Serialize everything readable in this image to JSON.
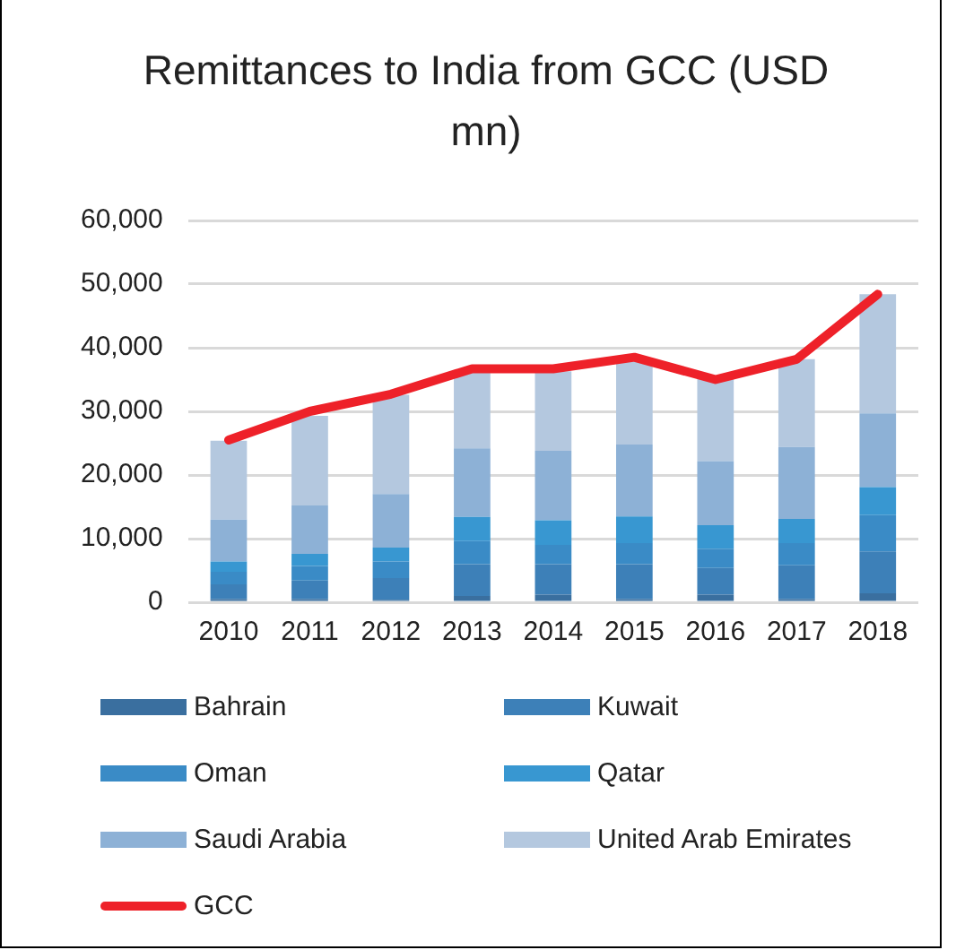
{
  "chart_data": {
    "type": "bar",
    "title": "Remittances to India from GCC (USD mn)",
    "stacked": true,
    "categories": [
      "2010",
      "2011",
      "2012",
      "2013",
      "2014",
      "2015",
      "2016",
      "2017",
      "2018"
    ],
    "series": [
      {
        "name": "Bahrain",
        "color": "#3a6f9f",
        "values": [
          500,
          500,
          400,
          1000,
          1200,
          500,
          1200,
          500,
          1400
        ]
      },
      {
        "name": "Kuwait",
        "color": "#3d80b8",
        "values": [
          2300,
          2900,
          3400,
          5000,
          4800,
          5500,
          4200,
          5300,
          6600
        ]
      },
      {
        "name": "Oman",
        "color": "#3a8bc6",
        "values": [
          2000,
          2300,
          2600,
          3600,
          3000,
          3300,
          3000,
          3500,
          5700
        ]
      },
      {
        "name": "Qatar",
        "color": "#3897d1",
        "values": [
          1600,
          1900,
          2200,
          3800,
          3900,
          4200,
          3700,
          3800,
          4400
        ]
      },
      {
        "name": "Saudi Arabia",
        "color": "#8db1d6",
        "values": [
          6600,
          7600,
          8400,
          10800,
          10900,
          11300,
          10100,
          11300,
          11600
        ]
      },
      {
        "name": "United Arab Emirates",
        "color": "#b4c8df",
        "values": [
          12400,
          14100,
          15600,
          12300,
          12500,
          13500,
          13000,
          13800,
          18700
        ]
      },
      {
        "name": "GCC",
        "type": "line",
        "color": "#ee2129",
        "values": [
          25500,
          30000,
          32700,
          36700,
          36700,
          38500,
          35000,
          38200,
          48400
        ]
      }
    ],
    "ylim": [
      0,
      60000
    ],
    "yticks": [
      0,
      {
        "value": 10000,
        "label": "10,000"
      },
      {
        "value": 20000,
        "label": "20,000"
      },
      {
        "value": 30000,
        "label": "30,000"
      },
      {
        "value": 40000,
        "label": "40,000"
      },
      {
        "value": 50000,
        "label": "50,000"
      },
      {
        "value": 60000,
        "label": "60,000"
      }
    ],
    "grid": "y",
    "legend": "bottom",
    "marker": "none"
  }
}
